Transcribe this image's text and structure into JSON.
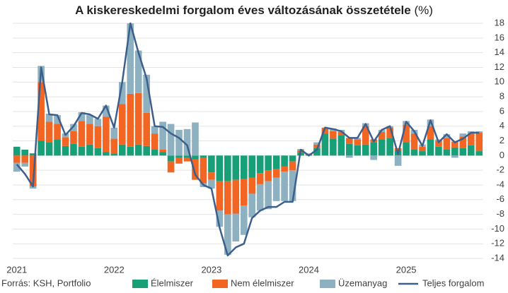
{
  "chart_data": {
    "type": "bar",
    "title": "A kiskereskedelmi forgalom éves változásának összetétele",
    "title_unit": "(%)",
    "source": "Forrás: KSH, Portfolio",
    "categories": [
      "2021",
      null,
      null,
      null,
      null,
      null,
      null,
      null,
      null,
      null,
      null,
      null,
      "2022",
      null,
      null,
      null,
      null,
      null,
      null,
      null,
      null,
      null,
      null,
      null,
      "2023",
      null,
      null,
      null,
      null,
      null,
      null,
      null,
      null,
      null,
      null,
      null,
      "2024",
      null,
      null,
      null,
      null,
      null,
      null,
      null,
      null,
      null,
      null,
      null,
      "2025",
      null,
      null,
      null,
      null,
      null,
      null,
      null,
      null,
      null
    ],
    "ylim": [
      -14,
      18
    ],
    "yticks": [
      -14,
      -12,
      -10,
      -8,
      -6,
      -4,
      -2,
      0,
      2,
      4,
      6,
      8,
      10,
      12,
      14,
      16,
      18
    ],
    "grid": true,
    "series": [
      {
        "name": "Élelmiszer",
        "type": "bar",
        "color": "#17a078",
        "values": [
          1.2,
          0.8,
          0.3,
          2,
          1.8,
          2.2,
          1.3,
          1.6,
          1.2,
          1.5,
          1,
          0.5,
          0.3,
          1.5,
          1.2,
          1.5,
          1.3,
          0.8,
          0.5,
          -0.8,
          -0.3,
          -0.3,
          -0.5,
          -0.3,
          -2.3,
          -3.5,
          -3.5,
          -3.3,
          -3.2,
          -3,
          -2.4,
          -2,
          -1.8,
          -1.5,
          -0.8,
          0.4,
          0.1,
          1,
          3,
          2.3,
          2.8,
          1.6,
          1.4,
          1.5,
          1.8,
          2.2,
          2.4,
          0.7,
          1.8,
          0.8,
          0.6,
          2.2,
          1.2,
          0.8,
          1.1,
          1,
          1.4,
          0.6
        ]
      },
      {
        "name": "Nem élelmiszer",
        "type": "bar",
        "color": "#f26522",
        "values": [
          -1,
          -1,
          -4.2,
          8,
          2.8,
          2.1,
          1.2,
          1.7,
          3.5,
          2.8,
          3,
          4.8,
          2,
          5.5,
          7.2,
          7,
          4.5,
          2.2,
          0.3,
          -1.5,
          -0.8,
          -0.5,
          -2.8,
          -3.5,
          -1,
          -4,
          -4.5,
          -4.6,
          -3.6,
          -2.2,
          -1.5,
          -1.5,
          -1.2,
          -0.7,
          -1.2,
          0.3,
          0.1,
          0.5,
          0.8,
          1,
          0.4,
          0.8,
          0.8,
          2.5,
          0.4,
          1,
          1.4,
          0.3,
          2.4,
          2.2,
          0.6,
          1.8,
          0.8,
          1.6,
          0.8,
          1.6,
          1.6,
          2.5
        ]
      },
      {
        "name": "Üzemanyag",
        "type": "bar",
        "color": "#8eb1c2",
        "values": [
          -1.2,
          -0.5,
          -0.3,
          2.2,
          1.1,
          1.2,
          0.5,
          1,
          1.2,
          1.2,
          1,
          1.5,
          1.5,
          3,
          9.6,
          5.8,
          5.2,
          1,
          3.8,
          4.3,
          3.5,
          3.6,
          4.5,
          -0.5,
          -1.2,
          -2.2,
          -5.5,
          -3.8,
          -4,
          -3.2,
          -3.6,
          -3.8,
          -3.2,
          -4,
          -4.2,
          0.2,
          0.1,
          0.3,
          0,
          0.4,
          0.3,
          -0.3,
          0.2,
          0.4,
          -0.6,
          0.3,
          0.2,
          -1.4,
          0.5,
          0.5,
          0.3,
          0.9,
          0.2,
          0.5,
          -0.3,
          0.4,
          0.3,
          0.2
        ]
      },
      {
        "name": "Teljes forgalom",
        "type": "line",
        "color": "#3c5f8c",
        "values": [
          -1.2,
          -2.5,
          -4.2,
          12,
          5.6,
          5.5,
          2.8,
          4,
          5.8,
          5.6,
          5,
          6.8,
          3.8,
          10,
          18,
          14,
          10.5,
          4,
          3.9,
          3,
          2.4,
          1.4,
          -2.6,
          -4,
          -4.5,
          -9.8,
          -13.6,
          -12.5,
          -12,
          -8.5,
          -7.5,
          -7,
          -7,
          -6.3,
          -6.3,
          0.8,
          0,
          0.8,
          3.8,
          3.6,
          3.3,
          2.4,
          2.4,
          4.3,
          1.9,
          3.5,
          4,
          0.2,
          4.6,
          3.3,
          1.3,
          4.8,
          1.8,
          2.9,
          1.8,
          2.3,
          3.1,
          3.1
        ]
      }
    ]
  }
}
